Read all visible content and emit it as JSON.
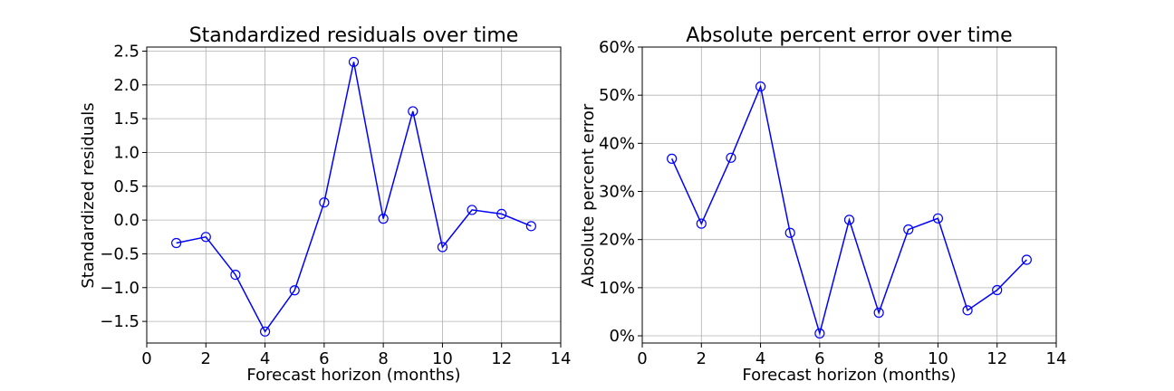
{
  "chart_data": [
    {
      "type": "line",
      "title": "Standardized residuals over time",
      "xlabel": "Forecast horizon (months)",
      "ylabel": "Standardized residuals",
      "xlim": [
        0,
        14
      ],
      "ylim": [
        -1.82,
        2.56
      ],
      "xticks": [
        0,
        2,
        4,
        6,
        8,
        10,
        12,
        14
      ],
      "xtick_labels": [
        "0",
        "2",
        "4",
        "6",
        "8",
        "10",
        "12",
        "14"
      ],
      "yticks": [
        -1.5,
        -1.0,
        -0.5,
        0.0,
        0.5,
        1.0,
        1.5,
        2.0,
        2.5
      ],
      "ytick_labels": [
        "−1.5",
        "−1.0",
        "−0.5",
        "0.0",
        "0.5",
        "1.0",
        "1.5",
        "2.0",
        "2.5"
      ],
      "grid": true,
      "color": "#0000ff",
      "marker": "open-circle",
      "x": [
        1,
        2,
        3,
        4,
        5,
        6,
        7,
        8,
        9,
        10,
        11,
        12,
        13
      ],
      "y": [
        -0.34,
        -0.25,
        -0.81,
        -1.65,
        -1.04,
        0.26,
        2.34,
        0.02,
        1.61,
        -0.4,
        0.15,
        0.09,
        -0.09
      ]
    },
    {
      "type": "line",
      "title": "Absolute percent error over time",
      "xlabel": "Forecast horizon (months)",
      "ylabel": "Absolute percent error",
      "xlim": [
        0,
        14
      ],
      "ylim": [
        -1.5,
        60
      ],
      "xticks": [
        0,
        2,
        4,
        6,
        8,
        10,
        12,
        14
      ],
      "xtick_labels": [
        "0",
        "2",
        "4",
        "6",
        "8",
        "10",
        "12",
        "14"
      ],
      "yticks": [
        0,
        10,
        20,
        30,
        40,
        50,
        60
      ],
      "ytick_labels": [
        "0%",
        "10%",
        "20%",
        "30%",
        "40%",
        "50%",
        "60%"
      ],
      "grid": true,
      "color": "#0000ff",
      "marker": "open-circle",
      "x": [
        1,
        2,
        3,
        4,
        5,
        6,
        7,
        8,
        9,
        10,
        11,
        12,
        13
      ],
      "y": [
        36.8,
        23.3,
        37.0,
        51.8,
        21.4,
        0.5,
        24.1,
        4.8,
        22.1,
        24.4,
        5.3,
        9.5,
        15.8
      ]
    }
  ]
}
